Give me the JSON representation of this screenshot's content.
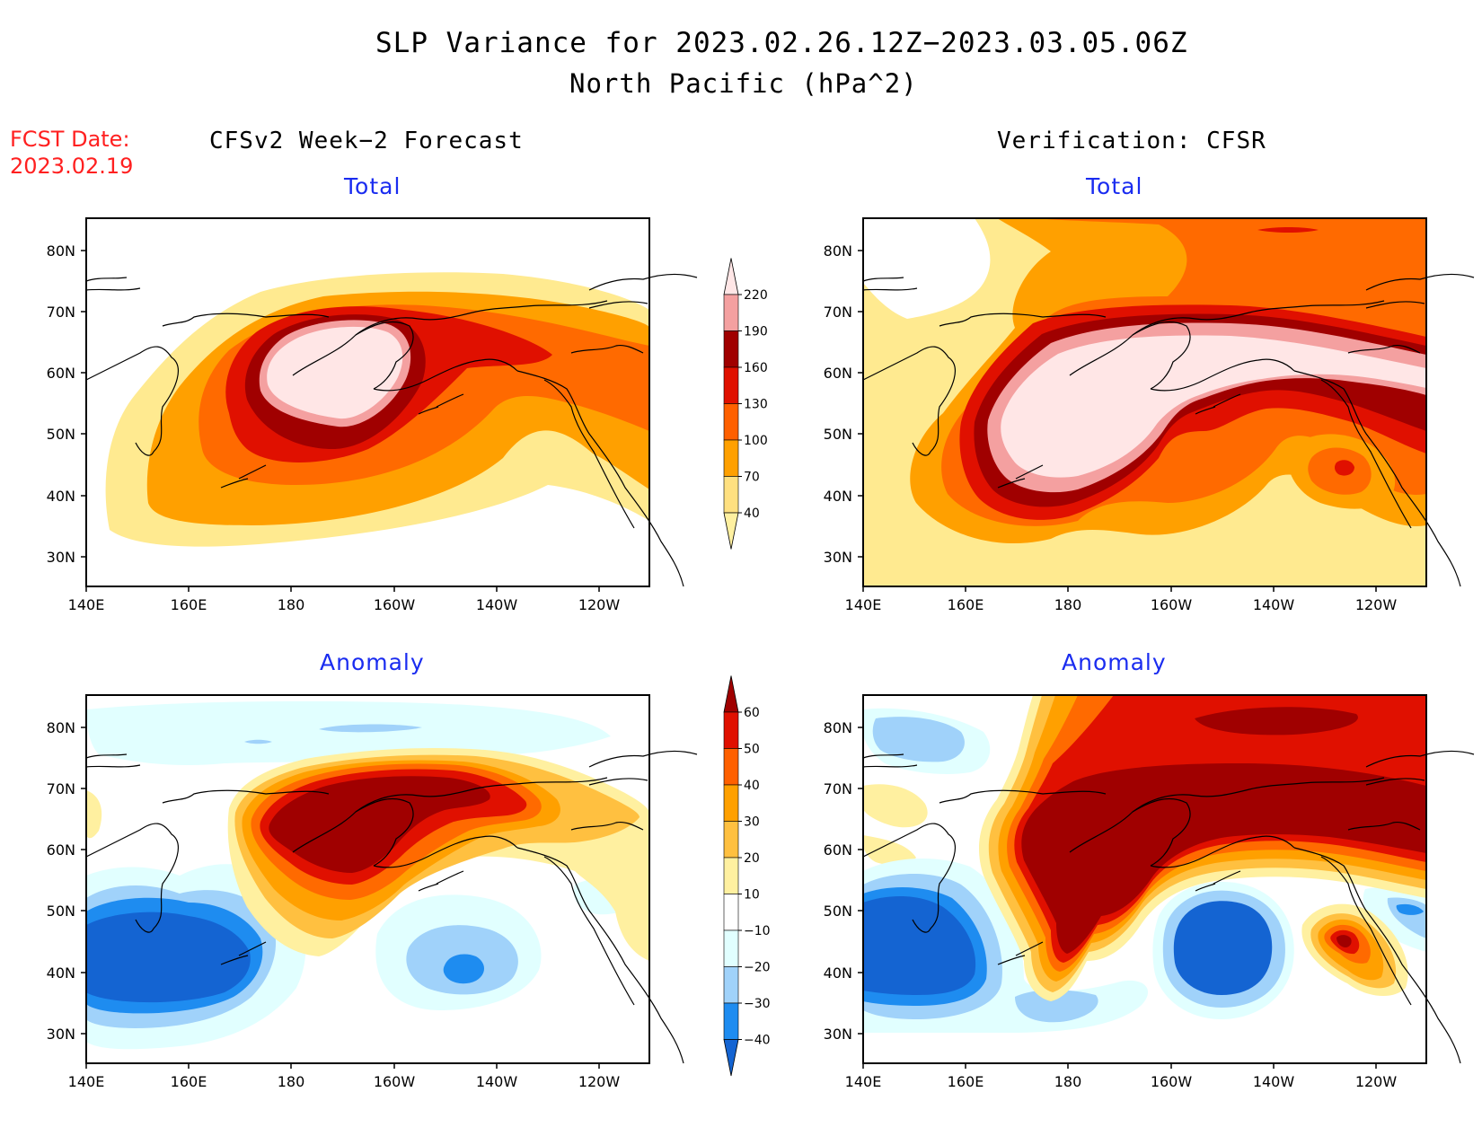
{
  "title": "SLP Variance for 2023.02.26.12Z−2023.03.05.06Z",
  "subtitle": "North Pacific (hPa^2)",
  "fcst_label": "FCST Date:",
  "fcst_date": "2023.02.19",
  "left_column_title": "CFSv2 Week−2 Forecast",
  "right_column_title": "Verification: CFSR",
  "panels": [
    {
      "id": "fcst-total",
      "title": "Total"
    },
    {
      "id": "verif-total",
      "title": "Total"
    },
    {
      "id": "fcst-anomaly",
      "title": "Anomaly"
    },
    {
      "id": "verif-anomaly",
      "title": "Anomaly"
    }
  ],
  "lat_labels": [
    "80N",
    "70N",
    "60N",
    "50N",
    "40N",
    "30N"
  ],
  "lon_labels": [
    "140E",
    "160E",
    "180",
    "160W",
    "140W",
    "120W"
  ],
  "colorbar_total": {
    "labels": [
      "40",
      "70",
      "100",
      "130",
      "160",
      "190",
      "220"
    ],
    "colors": [
      "#fff0a0",
      "#ffe080",
      "#ffa000",
      "#ff6000",
      "#e01000",
      "#a00000",
      "#f4a0a0",
      "#ffe6e6"
    ]
  },
  "colorbar_anomaly": {
    "labels": [
      "−40",
      "−30",
      "−20",
      "−10",
      "10",
      "20",
      "30",
      "40",
      "50",
      "60"
    ],
    "colors": [
      "#1464d2",
      "#1e8cf0",
      "#a0d2fa",
      "#e1ffff",
      "#ffffff",
      "#fff0a0",
      "#ffc040",
      "#ffa000",
      "#ff6000",
      "#e01000",
      "#a00000"
    ]
  }
}
